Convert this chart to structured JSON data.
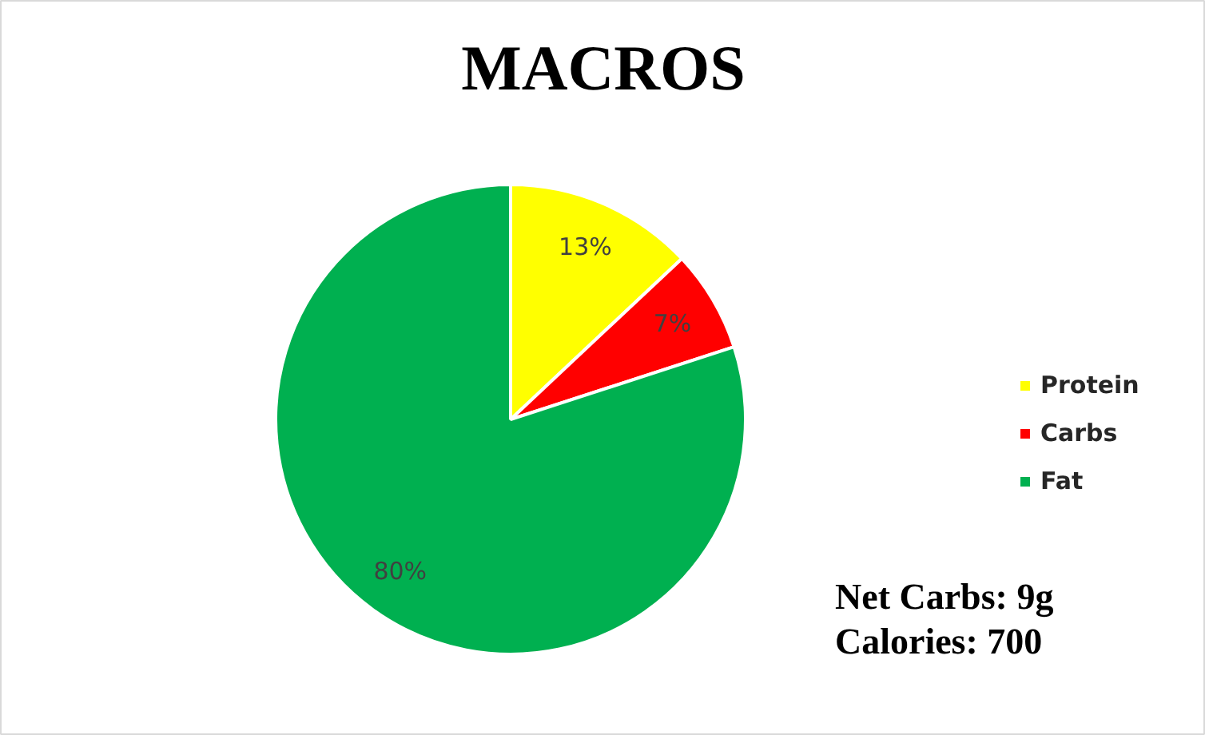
{
  "chart_data": {
    "type": "pie",
    "title": "MACROS",
    "categories": [
      "Protein",
      "Carbs",
      "Fat"
    ],
    "values": [
      13,
      7,
      80
    ],
    "colors": [
      "#ffff00",
      "#ff0000",
      "#00b050"
    ],
    "value_labels": [
      "13%",
      "7%",
      "80%"
    ],
    "legend": "right",
    "annotations": [
      "Net Carbs: 9g",
      "Calories: 700"
    ]
  }
}
